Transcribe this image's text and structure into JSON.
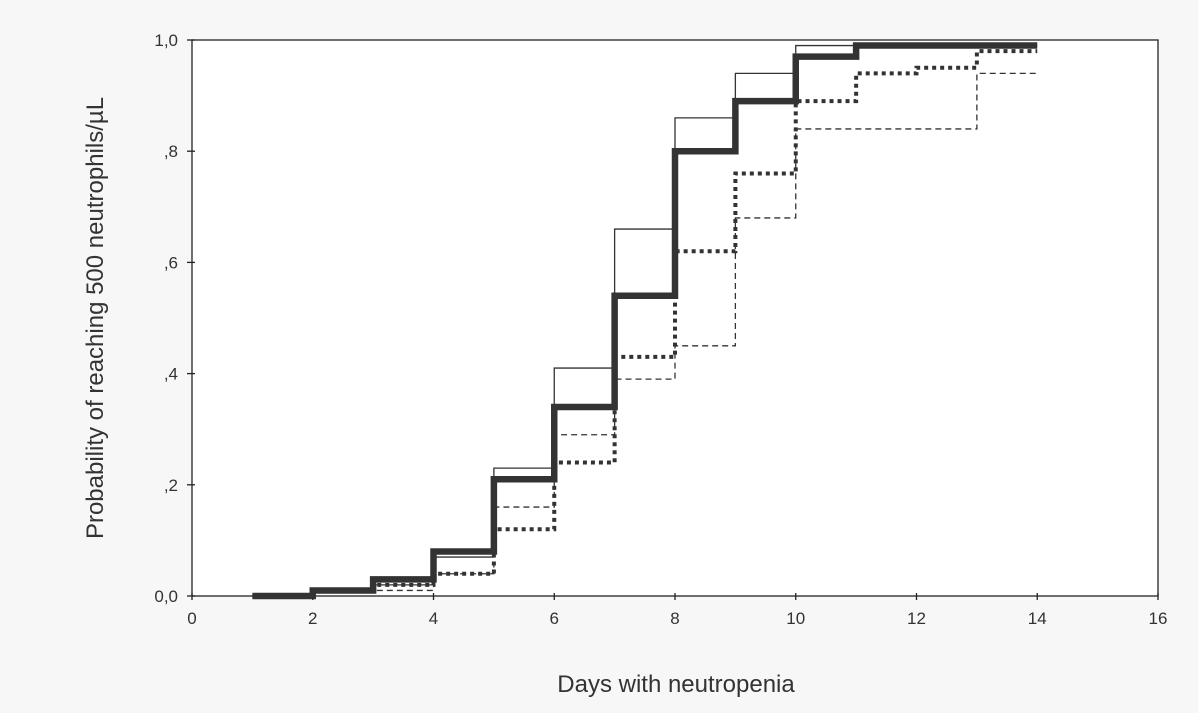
{
  "chart_data": {
    "type": "line",
    "step": true,
    "title": "",
    "xlabel": "Days with neutropenia",
    "ylabel": "Probability of reaching 500 neutrophils/µL",
    "xlim": [
      0,
      16
    ],
    "ylim": [
      0,
      1
    ],
    "x_ticks": [
      0,
      2,
      4,
      6,
      8,
      10,
      12,
      14,
      16
    ],
    "x_tick_labels": [
      "0",
      "2",
      "4",
      "6",
      "8",
      "10",
      "12",
      "14",
      "16"
    ],
    "y_ticks": [
      0,
      0.2,
      0.4,
      0.6,
      0.8,
      1.0
    ],
    "y_tick_labels": [
      "0,0",
      ",2",
      ",4",
      ",6",
      ",8",
      "1,0"
    ],
    "grid": false,
    "legend": "none",
    "series": [
      {
        "style": "thick-solid",
        "color": "#333333",
        "x": [
          1,
          2,
          3,
          4,
          5,
          6,
          7,
          8,
          9,
          10,
          11,
          14
        ],
        "y": [
          0.0,
          0.01,
          0.03,
          0.08,
          0.21,
          0.34,
          0.54,
          0.8,
          0.89,
          0.97,
          0.99,
          0.99
        ]
      },
      {
        "style": "thin-solid",
        "color": "#333333",
        "x": [
          1,
          2,
          3,
          4,
          5,
          6,
          7,
          8,
          9,
          10,
          11,
          14
        ],
        "y": [
          0.0,
          0.01,
          0.02,
          0.07,
          0.23,
          0.41,
          0.66,
          0.86,
          0.94,
          0.99,
          0.99,
          0.99
        ]
      },
      {
        "style": "thick-dotted",
        "color": "#333333",
        "x": [
          1,
          2,
          3,
          4,
          5,
          6,
          7,
          8,
          9,
          10,
          11,
          12,
          13,
          14
        ],
        "y": [
          0.0,
          0.01,
          0.02,
          0.04,
          0.12,
          0.24,
          0.43,
          0.62,
          0.76,
          0.89,
          0.94,
          0.95,
          0.98,
          0.98
        ]
      },
      {
        "style": "thin-dashed",
        "color": "#333333",
        "x": [
          1,
          2,
          3,
          4,
          5,
          6,
          7,
          8,
          9,
          10,
          13,
          14
        ],
        "y": [
          0.0,
          0.01,
          0.01,
          0.04,
          0.16,
          0.29,
          0.39,
          0.45,
          0.68,
          0.84,
          0.94,
          0.94
        ]
      }
    ]
  }
}
